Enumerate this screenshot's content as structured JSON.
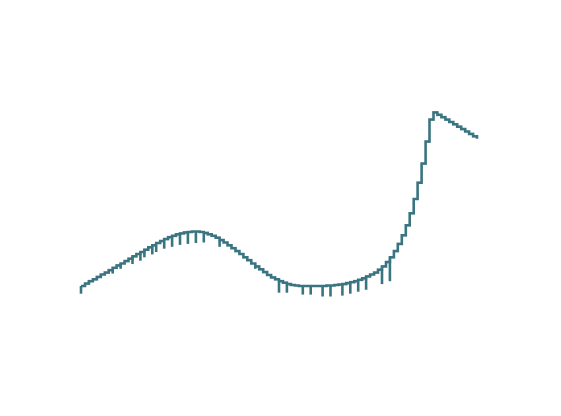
{
  "chart_data": {
    "type": "line",
    "title": "",
    "xlabel": "",
    "ylabel": "",
    "grid": false,
    "axes_visible": false,
    "legend": "none",
    "x_range": [
      0,
      101
    ],
    "y_range": [
      -1.0,
      3.6
    ],
    "step_style": "steps-post with vertical segments at each step",
    "series": [
      {
        "color": "#3A7480",
        "x": [
          0,
          1,
          2,
          3,
          4,
          5,
          6,
          7,
          8,
          9,
          10,
          11,
          12,
          13,
          14,
          15,
          16,
          17,
          18,
          19,
          20,
          21,
          22,
          23,
          24,
          25,
          26,
          27,
          28,
          29,
          30,
          31,
          32,
          33,
          34,
          35,
          36,
          37,
          38,
          39,
          40,
          41,
          42,
          43,
          44,
          45,
          46,
          47,
          48,
          49,
          50,
          51,
          52,
          53,
          54,
          55,
          56,
          57,
          58,
          59,
          60,
          61,
          62,
          63,
          64,
          65,
          66,
          67,
          68,
          69,
          70,
          71,
          72,
          73,
          74,
          75,
          76,
          77,
          78,
          79,
          80,
          81,
          82,
          83,
          84,
          85,
          86,
          87,
          88,
          89,
          90,
          91,
          92,
          93,
          94,
          95,
          96,
          97,
          98,
          99,
          100
        ],
        "y": [
          -0.08,
          -0.03,
          0.02,
          0.06,
          0.11,
          0.16,
          0.2,
          0.25,
          0.3,
          0.35,
          0.39,
          0.44,
          0.49,
          0.54,
          0.59,
          0.63,
          0.68,
          0.73,
          0.77,
          0.82,
          0.86,
          0.9,
          0.94,
          0.97,
          1.0,
          1.02,
          1.04,
          1.05,
          1.06,
          1.06,
          1.05,
          1.03,
          1.0,
          0.97,
          0.93,
          0.88,
          0.83,
          0.77,
          0.71,
          0.65,
          0.59,
          0.52,
          0.46,
          0.39,
          0.33,
          0.27,
          0.21,
          0.15,
          0.1,
          0.06,
          0.02,
          -0.01,
          -0.04,
          -0.06,
          -0.07,
          -0.08,
          -0.08,
          -0.08,
          -0.08,
          -0.08,
          -0.08,
          -0.08,
          -0.07,
          -0.07,
          -0.06,
          -0.05,
          -0.04,
          -0.02,
          0.0,
          0.02,
          0.05,
          0.08,
          0.12,
          0.16,
          0.2,
          0.26,
          0.33,
          0.42,
          0.52,
          0.65,
          0.8,
          0.98,
          1.19,
          1.44,
          1.74,
          2.08,
          2.48,
          2.94,
          3.4,
          3.55,
          3.5,
          3.45,
          3.4,
          3.35,
          3.3,
          3.25,
          3.2,
          3.15,
          3.1,
          3.05,
          3.0
        ],
        "dips": [
          {
            "x": 0,
            "y": -0.24
          },
          {
            "x": 2,
            "y": -0.02
          },
          {
            "x": 4,
            "y": 0.04
          },
          {
            "x": 8,
            "y": 0.18
          },
          {
            "x": 10,
            "y": 0.28
          },
          {
            "x": 13,
            "y": 0.38
          },
          {
            "x": 15,
            "y": 0.45
          },
          {
            "x": 16,
            "y": 0.52
          },
          {
            "x": 18,
            "y": 0.58
          },
          {
            "x": 19,
            "y": 0.63
          },
          {
            "x": 21,
            "y": 0.7
          },
          {
            "x": 23,
            "y": 0.74
          },
          {
            "x": 25,
            "y": 0.78
          },
          {
            "x": 27,
            "y": 0.8
          },
          {
            "x": 29,
            "y": 0.82
          },
          {
            "x": 31,
            "y": 0.83
          },
          {
            "x": 35,
            "y": 0.74
          },
          {
            "x": 44,
            "y": 0.28
          },
          {
            "x": 50,
            "y": -0.22
          },
          {
            "x": 52,
            "y": -0.22
          },
          {
            "x": 56,
            "y": -0.26
          },
          {
            "x": 58,
            "y": -0.26
          },
          {
            "x": 61,
            "y": -0.3
          },
          {
            "x": 63,
            "y": -0.3
          },
          {
            "x": 66,
            "y": -0.28
          },
          {
            "x": 68,
            "y": -0.24
          },
          {
            "x": 70,
            "y": -0.2
          },
          {
            "x": 72,
            "y": -0.16
          },
          {
            "x": 76,
            "y": -0.04
          },
          {
            "x": 78,
            "y": 0.02
          }
        ]
      }
    ]
  }
}
